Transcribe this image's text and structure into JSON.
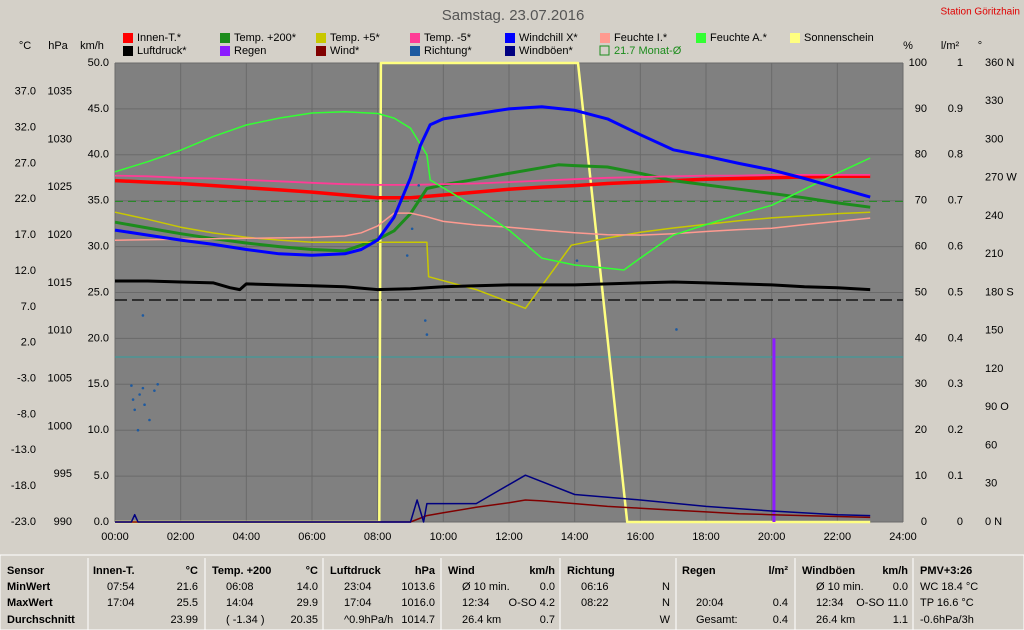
{
  "chart_data": {
    "type": "line",
    "title": "Samstag. 23.07.2016",
    "station": "Station Göritzhain",
    "xlim": [
      0,
      24
    ],
    "xticks": [
      {
        "value": 0,
        "label": "00:00"
      },
      {
        "value": 2,
        "label": "02:00"
      },
      {
        "value": 4,
        "label": "04:00"
      },
      {
        "value": 6,
        "label": "06:00"
      },
      {
        "value": 8,
        "label": "08:00"
      },
      {
        "value": 10,
        "label": "10:00"
      },
      {
        "value": 12,
        "label": "12:00"
      },
      {
        "value": 14,
        "label": "14:00"
      },
      {
        "value": 16,
        "label": "16:00"
      },
      {
        "value": 18,
        "label": "18:00"
      },
      {
        "value": 20,
        "label": "20:00"
      },
      {
        "value": 22,
        "label": "22:00"
      },
      {
        "value": 24,
        "label": "24:00"
      }
    ],
    "grid": true,
    "axes": {
      "temp": {
        "unit": "°C",
        "lim": [
          -23,
          41
        ],
        "ticks": [
          {
            "value": -23,
            "label": "-23.0"
          },
          {
            "value": -18,
            "label": "-18.0"
          },
          {
            "value": -13,
            "label": "-13.0"
          },
          {
            "value": -8,
            "label": "-8.0"
          },
          {
            "value": -3,
            "label": "-3.0"
          },
          {
            "value": 2,
            "label": "2.0"
          },
          {
            "value": 7,
            "label": "7.0"
          },
          {
            "value": 12,
            "label": "12.0"
          },
          {
            "value": 17,
            "label": "17.0"
          },
          {
            "value": 22,
            "label": "22.0"
          },
          {
            "value": 27,
            "label": "27.0"
          },
          {
            "value": 32,
            "label": "32.0"
          },
          {
            "value": 37,
            "label": "37.0"
          }
        ]
      },
      "hpa": {
        "unit": "hPa",
        "lim": [
          990,
          1038
        ],
        "ticks": [
          990,
          995,
          1000,
          1005,
          1010,
          1015,
          1020,
          1025,
          1030,
          1035
        ]
      },
      "kmh": {
        "unit": "km/h",
        "lim": [
          0,
          50
        ],
        "ticks": [
          {
            "value": 0,
            "label": "0.0"
          },
          {
            "value": 5,
            "label": "5.0"
          },
          {
            "value": 10,
            "label": "10.0"
          },
          {
            "value": 15,
            "label": "15.0"
          },
          {
            "value": 20,
            "label": "20.0"
          },
          {
            "value": 25,
            "label": "25.0"
          },
          {
            "value": 30,
            "label": "30.0"
          },
          {
            "value": 35,
            "label": "35.0"
          },
          {
            "value": 40,
            "label": "40.0"
          },
          {
            "value": 45,
            "label": "45.0"
          },
          {
            "value": 50,
            "label": "50.0"
          }
        ]
      },
      "pct": {
        "unit": "%",
        "lim": [
          0,
          100
        ],
        "ticks": [
          0,
          10,
          20,
          30,
          40,
          50,
          60,
          70,
          80,
          90,
          100
        ]
      },
      "lm2": {
        "unit": "l/m²",
        "lim": [
          0,
          1
        ],
        "ticks": [
          0,
          0.1,
          0.2,
          0.3,
          0.4,
          0.5,
          0.6,
          0.7,
          0.8,
          0.9,
          1
        ]
      },
      "deg": {
        "unit": "°",
        "lim": [
          0,
          360
        ],
        "ticks": [
          {
            "value": 0,
            "label": "0 N"
          },
          30,
          60,
          {
            "value": 90,
            "label": "90 O"
          },
          120,
          150,
          {
            "value": 180,
            "label": "180 S"
          },
          210,
          240,
          {
            "value": 270,
            "label": "270 W"
          },
          300,
          330,
          {
            "value": 360,
            "label": "360 N"
          }
        ]
      }
    },
    "series": [
      {
        "name": "Innen-T.*",
        "color": "#ff0000",
        "axis": "temp",
        "width": 3.5,
        "x": [
          0,
          1,
          2,
          3,
          4,
          5,
          6,
          7,
          8,
          9,
          10,
          11,
          12,
          13,
          14,
          15,
          16,
          17,
          18,
          19,
          20,
          21,
          22,
          23
        ],
        "values": [
          24.6,
          24.4,
          24.2,
          23.9,
          23.6,
          23.3,
          23.0,
          22.6,
          22.2,
          22.2,
          22.6,
          23.0,
          23.4,
          23.7,
          23.9,
          24.2,
          24.4,
          24.6,
          24.8,
          24.9,
          25.0,
          25.1,
          25.2,
          25.2
        ]
      },
      {
        "name": "Temp. +200*",
        "color": "#1c8c1c",
        "axis": "temp",
        "width": 3,
        "x": [
          0,
          1,
          2,
          3,
          4,
          5,
          6,
          7,
          8,
          8.5,
          9,
          9.5,
          10,
          11,
          12,
          13,
          13.5,
          14,
          15,
          16,
          17,
          18,
          19,
          20,
          21,
          22,
          23
        ],
        "values": [
          18.8,
          18.0,
          17.2,
          16.5,
          15.9,
          15.4,
          15.0,
          14.8,
          16.4,
          17.6,
          20.0,
          23.5,
          24.0,
          24.8,
          25.6,
          26.4,
          26.8,
          26.7,
          26.5,
          25.6,
          24.6,
          24.0,
          23.4,
          22.8,
          22.2,
          21.5,
          20.9
        ]
      },
      {
        "name": "Temp. +5*",
        "color": "#c8c800",
        "axis": "temp",
        "width": 1.5,
        "x": [
          0,
          1,
          2,
          3,
          4,
          5,
          6,
          7,
          8,
          9,
          9.5,
          9.55,
          11,
          12.5,
          13.9,
          15,
          16,
          17,
          18,
          19,
          20,
          21,
          22,
          23
        ],
        "values": [
          20.2,
          19.2,
          18.1,
          17.3,
          16.7,
          16.3,
          16.0,
          16.0,
          16.0,
          16.0,
          16.0,
          11.2,
          9.4,
          6.8,
          15.6,
          16.6,
          17.4,
          18.0,
          18.5,
          19.0,
          19.4,
          19.7,
          20.0,
          20.2
        ]
      },
      {
        "name": "Temp. -5*",
        "color": "#ff3c96",
        "axis": "temp",
        "width": 1.8,
        "x": [
          0,
          1,
          2,
          3,
          4,
          5,
          6,
          7,
          8,
          9,
          10,
          11,
          12,
          13,
          14,
          15,
          16,
          17,
          18,
          19,
          20,
          21,
          22,
          23
        ],
        "values": [
          25.3,
          25.2,
          25.0,
          24.9,
          24.7,
          24.5,
          24.3,
          24.1,
          24.0,
          24.0,
          24.1,
          24.2,
          24.4,
          24.6,
          24.8,
          25.0,
          25.1,
          25.2,
          25.3,
          25.3,
          25.4,
          25.4,
          25.4,
          25.4
        ]
      },
      {
        "name": "Windchill X*",
        "color": "#0000ff",
        "axis": "temp",
        "width": 3,
        "x": [
          0,
          1,
          2,
          3,
          4,
          5,
          6,
          7,
          7.5,
          8,
          8.5,
          9,
          9.3,
          9.6,
          10,
          11,
          12,
          13,
          14,
          15,
          16,
          17,
          18,
          19,
          20,
          21,
          22,
          23
        ],
        "values": [
          17.7,
          17.0,
          16.3,
          15.7,
          15.0,
          14.4,
          14.2,
          14.4,
          15.0,
          16.3,
          19.5,
          25.0,
          29.5,
          32.4,
          33.2,
          33.9,
          34.6,
          34.9,
          34.4,
          33.2,
          31.0,
          28.9,
          28.0,
          27.0,
          26.1,
          24.9,
          23.6,
          22.3
        ]
      },
      {
        "name": "Feuchte I.*",
        "color": "#ff9a90",
        "axis": "pct",
        "width": 1.5,
        "x": [
          0,
          2,
          4,
          6,
          7,
          7.5,
          8,
          8.5,
          9,
          9.5,
          10,
          11,
          12,
          13,
          14,
          15,
          16,
          17,
          18,
          19,
          20,
          21,
          22,
          23
        ],
        "values": [
          61.4,
          61.6,
          61.8,
          62.0,
          62.3,
          63.0,
          64.5,
          67.3,
          67.3,
          66.5,
          65.5,
          64.7,
          64.2,
          63.6,
          63.0,
          62.6,
          62.5,
          62.8,
          63.3,
          63.7,
          64.0,
          64.8,
          65.5,
          66.2
        ]
      },
      {
        "name": "Feuchte A.*",
        "color": "#33ff33",
        "axis": "pct",
        "width": 1.5,
        "x": [
          0,
          1,
          2,
          3,
          4,
          5,
          6,
          7,
          8,
          8.5,
          9,
          9.5,
          9.6,
          11,
          12,
          13,
          14,
          15,
          15.5,
          16,
          17,
          18,
          19,
          20,
          21,
          22,
          23
        ],
        "values": [
          76.3,
          78.5,
          81.0,
          84.0,
          86.5,
          88.0,
          89.1,
          89.4,
          89.0,
          88.0,
          85.8,
          80.0,
          74.5,
          68.5,
          63.6,
          57.5,
          56.0,
          55.3,
          54.9,
          57.5,
          62.5,
          64.8,
          67.0,
          69.0,
          72.5,
          76.0,
          79.3
        ]
      },
      {
        "name": "Sonnenschein",
        "color": "#ffff80",
        "axis": "pct",
        "width": 2.5,
        "x": [
          0,
          8.05,
          8.1,
          14.1,
          15.6,
          23
        ],
        "values": [
          0,
          0,
          100,
          100,
          0,
          0
        ]
      },
      {
        "name": "Luftdruck*",
        "color": "#000000",
        "axis": "hpa",
        "width": 3,
        "x": [
          0,
          1,
          2,
          3,
          3.5,
          3.8,
          4,
          5,
          6,
          7,
          8,
          9,
          10,
          11,
          12,
          13,
          14,
          15,
          16,
          17,
          18,
          19,
          20,
          21,
          22,
          23
        ],
        "values": [
          1015.2,
          1015.2,
          1015.1,
          1015.0,
          1014.5,
          1014.3,
          1014.9,
          1014.8,
          1014.7,
          1014.6,
          1014.3,
          1014.4,
          1014.6,
          1014.7,
          1014.8,
          1014.8,
          1014.8,
          1014.9,
          1015.0,
          1015.1,
          1015.0,
          1014.9,
          1014.8,
          1014.6,
          1014.5,
          1014.3
        ]
      },
      {
        "name": "Regen",
        "color": "#8c1cff",
        "axis": "lm2",
        "style": "bars",
        "x": [
          20.07
        ],
        "values": [
          0.4
        ]
      },
      {
        "name": "Wind*",
        "color": "#800000",
        "axis": "kmh",
        "width": 1.5,
        "x": [
          0,
          9,
          9.5,
          10,
          11,
          12,
          12.5,
          13,
          14,
          15,
          16,
          17,
          18,
          19,
          20,
          21,
          22,
          23
        ],
        "values": [
          0,
          0,
          0.7,
          1.0,
          1.6,
          2.1,
          2.4,
          2.3,
          2.0,
          1.7,
          1.5,
          1.3,
          1.1,
          0.9,
          0.8,
          0.7,
          0.6,
          0.5
        ]
      },
      {
        "name": "Richtung*",
        "color": "#1e5aa0",
        "axis": "deg",
        "style": "dots",
        "x": [
          0.5,
          0.55,
          0.6,
          0.7,
          0.75,
          0.85,
          0.9,
          1.05,
          1.2,
          1.3,
          0.85,
          9.05,
          9.15,
          9.25,
          8.9,
          9.45,
          9.5,
          14.07,
          17.1
        ],
        "values": [
          107,
          96,
          88,
          72,
          100,
          105,
          92,
          80,
          103,
          108,
          162,
          230,
          284,
          264,
          209,
          158,
          147,
          205,
          151
        ]
      },
      {
        "name": "Windböen*",
        "color": "#000080",
        "axis": "kmh",
        "width": 1.5,
        "x": [
          0,
          0.5,
          0.6,
          0.7,
          1.5,
          9.0,
          9.2,
          9.4,
          9.5,
          11,
          12.5,
          14,
          16,
          18,
          20,
          22,
          23
        ],
        "values": [
          0,
          0,
          0.8,
          0,
          0,
          0,
          2.4,
          0,
          2.0,
          2.0,
          5.1,
          3.0,
          2.4,
          1.7,
          1.2,
          0.8,
          0.7
        ]
      }
    ],
    "reference_line": {
      "label": "21.7 Monat-Ø",
      "value": 21.7,
      "axis": "temp",
      "color": "#1c8c1c"
    }
  },
  "stats": {
    "labels": [
      "Sensor",
      "MinWert",
      "MaxWert",
      "Durchschnitt"
    ],
    "columns": [
      {
        "header": {
          "left": "Innen-T.",
          "right": "°C"
        },
        "rows": [
          {
            "left": "07:54",
            "right": "21.6"
          },
          {
            "left": "17:04",
            "right": "25.5"
          },
          {
            "right": "23.99"
          }
        ]
      },
      {
        "header": {
          "left": "Temp. +200",
          "right": "°C"
        },
        "rows": [
          {
            "left": "06:08",
            "right": "14.0"
          },
          {
            "left": "14:04",
            "right": "29.9"
          },
          {
            "left": "( -1.34 )",
            "right": "20.35"
          }
        ]
      },
      {
        "header": {
          "left": "Luftdruck",
          "right": "hPa"
        },
        "rows": [
          {
            "left": "23:04",
            "right": "1013.6"
          },
          {
            "left": "17:04",
            "right": "1016.0"
          },
          {
            "left": "^0.9hPa/h",
            "right": "1014.7"
          }
        ]
      },
      {
        "header": {
          "left": "Wind",
          "right": "km/h"
        },
        "rows": [
          {
            "left": "Ø 10 min.",
            "right": "0.0"
          },
          {
            "left": "12:34",
            "right": "O-SO 4.2"
          },
          {
            "left": "26.4 km",
            "right": "0.7"
          }
        ]
      },
      {
        "header": {
          "left": "Richtung"
        },
        "rows": [
          {
            "left": "06:16",
            "right": "N"
          },
          {
            "left": "08:22",
            "right": "N"
          },
          {
            "right": "W"
          }
        ]
      },
      {
        "header": {
          "left": "Regen",
          "right": "l/m²"
        },
        "rows": [
          {},
          {
            "left": "20:04",
            "right": "0.4"
          },
          {
            "left": "Gesamt:",
            "right": "0.4"
          }
        ]
      },
      {
        "header": {
          "left": "Windböen",
          "right": "km/h"
        },
        "rows": [
          {
            "left": "Ø 10 min.",
            "right": "0.0"
          },
          {
            "left": "12:34",
            "right": "O-SO 11.0"
          },
          {
            "left": "26.4 km",
            "right": "1.1"
          }
        ]
      },
      {
        "header": {
          "left": "PMV+3:26"
        },
        "rows": [
          {
            "left": "WC 18.4 °C"
          },
          {
            "left": "TP 16.6 °C"
          },
          {
            "left": "-0.6hPa/3h"
          }
        ]
      }
    ]
  }
}
